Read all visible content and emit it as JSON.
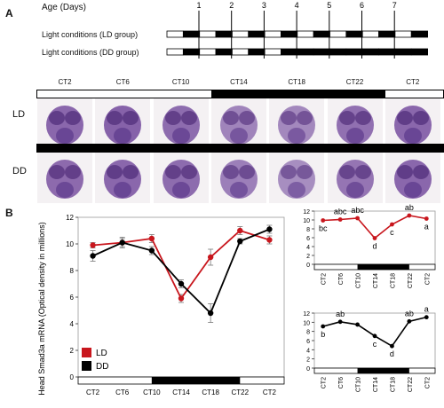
{
  "panel_a": {
    "letter": "A",
    "age_label": "Age (Days)",
    "days": [
      "1",
      "2",
      "3",
      "4",
      "5",
      "6",
      "7"
    ],
    "ld_label": "Light conditions (LD group)",
    "dd_label": "Light conditions (DD group)",
    "ct_columns": [
      "CT2",
      "CT6",
      "CT10",
      "CT14",
      "CT18",
      "CT22",
      "CT2"
    ],
    "row_ld": "LD",
    "row_dd": "DD",
    "stain_levels_ld": [
      0.85,
      0.9,
      0.8,
      0.55,
      0.5,
      0.75,
      0.85
    ],
    "stain_levels_dd": [
      0.82,
      0.85,
      0.8,
      0.6,
      0.45,
      0.7,
      0.85
    ]
  },
  "panel_b": {
    "letter": "B",
    "legend": {
      "ld": "LD",
      "dd": "DD"
    },
    "colors": {
      "ld": "#c8161d",
      "dd": "#000000"
    }
  },
  "chart_data": [
    {
      "type": "line",
      "ylabel": "Head Smad3a mRNA (Optical density in millions)",
      "ylim": [
        0,
        12
      ],
      "yticks": [
        "0",
        "2",
        "4",
        "6",
        "8",
        "10",
        "12"
      ],
      "categories": [
        "CT2",
        "CT6",
        "CT10",
        "CT14",
        "CT18",
        "CT22",
        "CT2"
      ],
      "series": [
        {
          "name": "LD",
          "values": [
            9.9,
            10.1,
            10.4,
            5.9,
            9.0,
            11.0,
            10.3
          ],
          "err": [
            0.2,
            0.3,
            0.3,
            0.3,
            0.6,
            0.3,
            0.3
          ]
        },
        {
          "name": "DD",
          "values": [
            9.1,
            10.1,
            9.5,
            7.0,
            4.8,
            10.2,
            11.1
          ],
          "err": [
            0.4,
            0.4,
            0.3,
            0.3,
            0.7,
            0.2,
            0.3
          ]
        }
      ]
    },
    {
      "type": "line",
      "ylim": [
        0,
        12
      ],
      "yticks": [
        "0",
        "2",
        "4",
        "6",
        "8",
        "10",
        "12"
      ],
      "categories": [
        "CT2",
        "CT6",
        "CT10",
        "CT14",
        "CT18",
        "CT22",
        "CT2"
      ],
      "series": [
        {
          "name": "LD",
          "values": [
            9.9,
            10.1,
            10.4,
            5.9,
            9.0,
            11.0,
            10.3
          ]
        }
      ],
      "letters": [
        "bc",
        "abc",
        "abc",
        "d",
        "c",
        "ab",
        "a"
      ]
    },
    {
      "type": "line",
      "ylim": [
        0,
        12
      ],
      "yticks": [
        "0",
        "2",
        "4",
        "6",
        "8",
        "10",
        "12"
      ],
      "categories": [
        "CT2",
        "CT6",
        "CT10",
        "CT14",
        "CT18",
        "CT22",
        "CT2"
      ],
      "series": [
        {
          "name": "DD",
          "values": [
            9.1,
            10.1,
            9.5,
            7.0,
            4.8,
            10.2,
            11.1
          ]
        }
      ],
      "letters": [
        "b",
        "ab",
        "",
        "c",
        "d",
        "ab",
        "a"
      ]
    }
  ]
}
